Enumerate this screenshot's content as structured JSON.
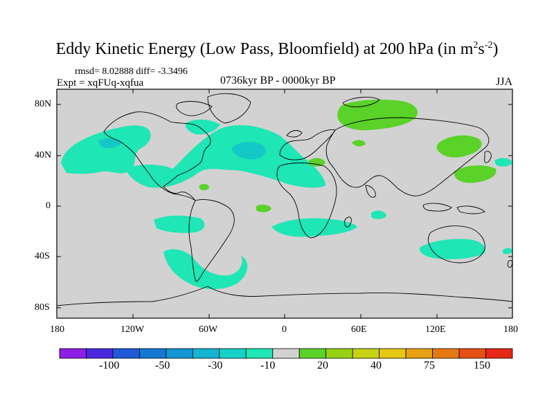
{
  "title": {
    "text": "Eddy Kinetic Energy (Low Pass, Bloomfield) at 200 hPa (in m",
    "sup1": "2",
    "mid": "s",
    "sup2": "-2",
    "close": ")"
  },
  "stats": "rmsd= 8.02888 diff= -3.3496",
  "experiment": "Expt = xqFUq-xqfua",
  "period": "0736kyr BP - 0000kyr BP",
  "season": "JJA",
  "latitude_labels": [
    "80N",
    "40N",
    "0",
    "40S",
    "80S"
  ],
  "longitude_labels": [
    "180",
    "120W",
    "60W",
    "0",
    "60E",
    "120E",
    "180"
  ],
  "colorbar": {
    "colors": [
      "#8c1ee6",
      "#4a28e0",
      "#1e5ad7",
      "#1478d2",
      "#1496d2",
      "#14b4d2",
      "#14d2c8",
      "#1ee6b4",
      "#d2d2d2",
      "#5ad228",
      "#96d214",
      "#c8d214",
      "#e6c814",
      "#e6a014",
      "#e67814",
      "#e65014",
      "#e62814"
    ],
    "labels": [
      "-100",
      "-50",
      "-30",
      "-10",
      "20",
      "40",
      "75",
      "150"
    ]
  },
  "colors": {
    "land_background": "#d2d2d2",
    "negative_anomaly": "#1ee6b4",
    "negative_strong": "#14c8c8",
    "positive_anomaly": "#5ad228"
  }
}
